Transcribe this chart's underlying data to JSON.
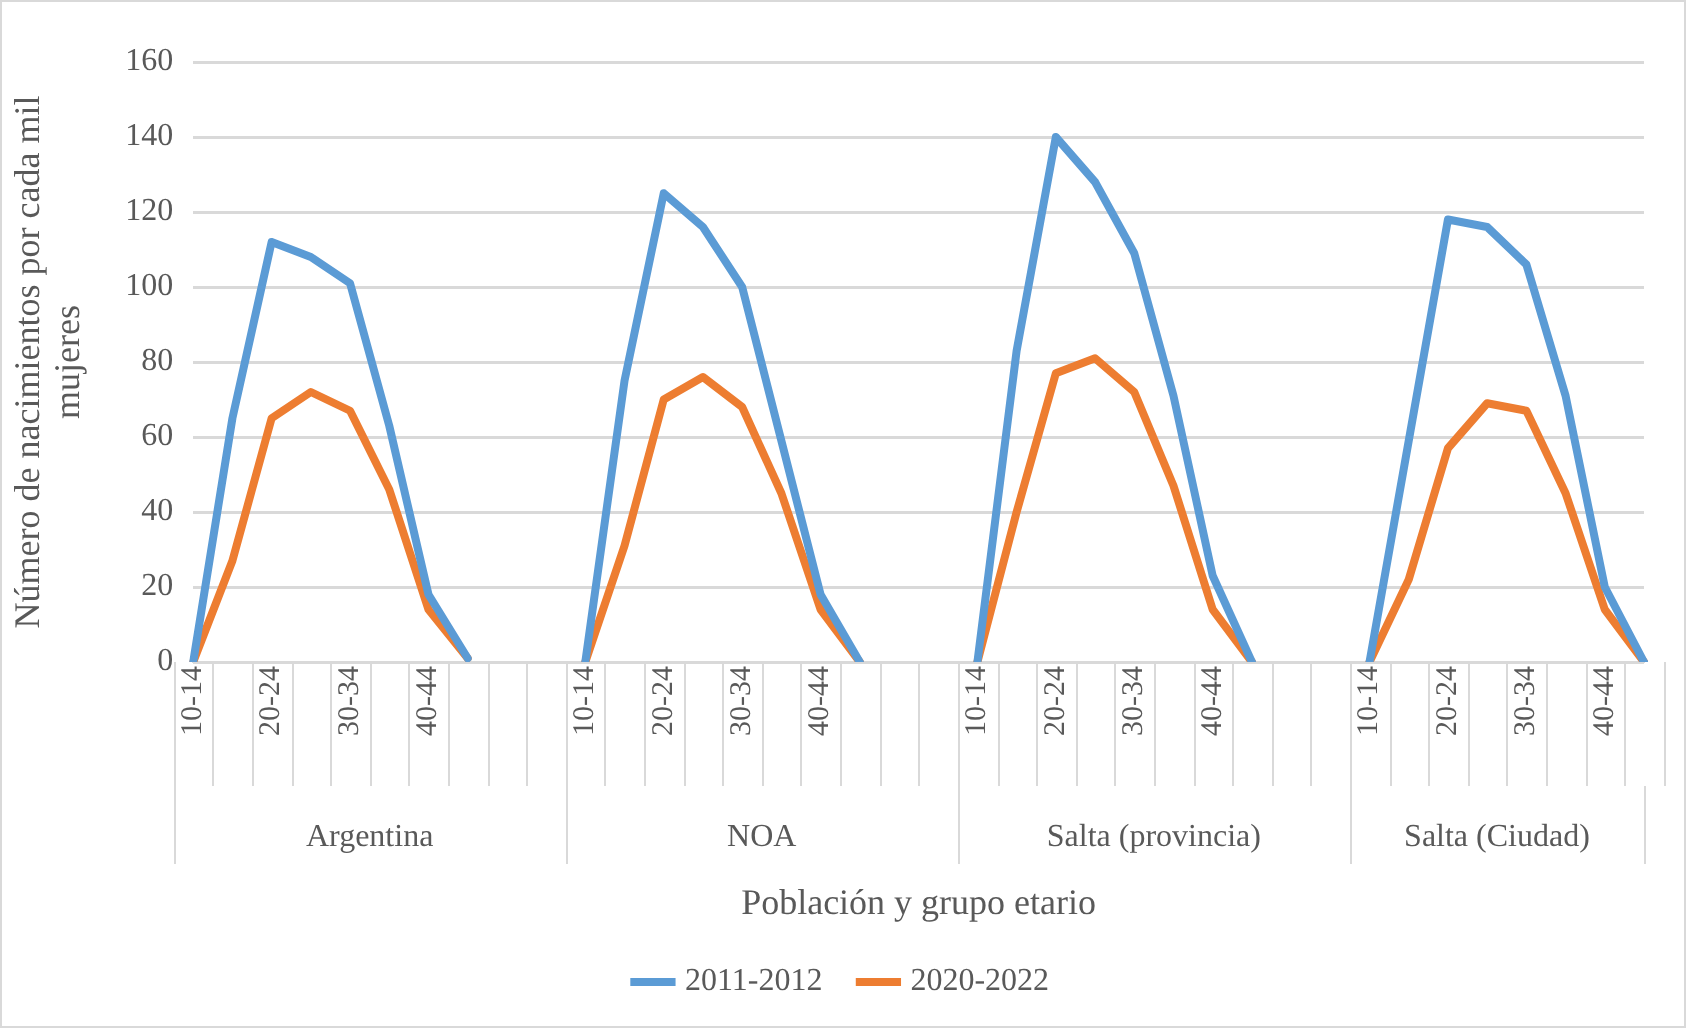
{
  "chart_data": {
    "type": "line",
    "ylabel": "Número de nacimientos por cada mil mujeres",
    "xlabel": "Población y grupo etario",
    "categories": [
      "10-14",
      null,
      "20-24",
      null,
      "30-34",
      null,
      "40-44",
      null,
      null,
      null,
      "10-14",
      null,
      "20-24",
      null,
      "30-34",
      null,
      "40-44",
      null,
      null,
      null,
      "10-14",
      null,
      "20-24",
      null,
      "30-34",
      null,
      "40-44",
      null,
      null,
      null,
      "10-14",
      null,
      "20-24",
      null,
      "30-34",
      null,
      "40-44",
      null
    ],
    "annotations": [
      "Argentina",
      "NOA",
      "Salta (provincia)",
      "Salta (Ciudad)"
    ],
    "series": [
      {
        "name": "2011-2012",
        "color": "#5b9bd5",
        "values": [
          0,
          65,
          112,
          108,
          101,
          63,
          18,
          1,
          null,
          null,
          0,
          75,
          125,
          116,
          100,
          59,
          18,
          0,
          null,
          null,
          0,
          83,
          140,
          128,
          109,
          71,
          23,
          0,
          null,
          null,
          0,
          59,
          118,
          116,
          106,
          71,
          20,
          0
        ]
      },
      {
        "name": "2020-2022",
        "color": "#ed7d31",
        "values": [
          0,
          27,
          65,
          72,
          67,
          46,
          14,
          1,
          null,
          null,
          0,
          31,
          70,
          76,
          68,
          45,
          14,
          0,
          null,
          null,
          0,
          40,
          77,
          81,
          72,
          47,
          14,
          0,
          null,
          null,
          0,
          22,
          57,
          69,
          67,
          45,
          14,
          0
        ]
      }
    ],
    "ylim": [
      0,
      160
    ],
    "yticks": [
      0,
      20,
      40,
      60,
      80,
      100,
      120,
      140,
      160
    ],
    "grid": "y",
    "legend": "bottom",
    "marker": "none",
    "line_style": "solid"
  }
}
